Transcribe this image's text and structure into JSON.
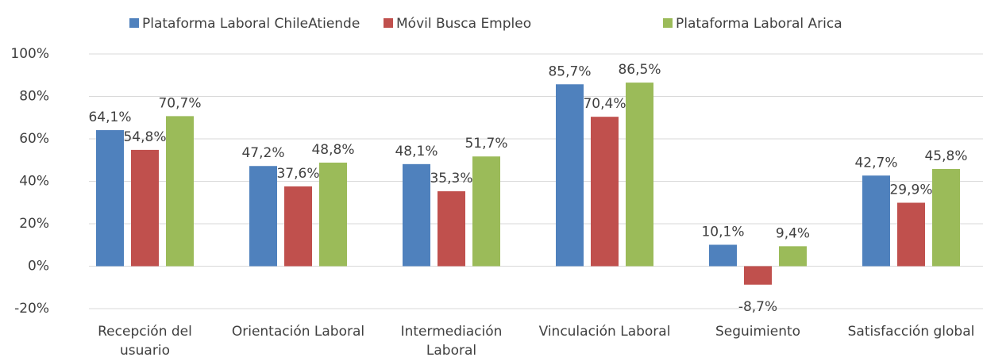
{
  "chart_data": {
    "type": "bar",
    "categories": [
      "Recepción del usuario",
      "Orientación Laboral",
      "Intermediación Laboral",
      "Vinculación Laboral",
      "Seguimiento",
      "Satisfacción global"
    ],
    "series": [
      {
        "name": "Plataforma Laboral ChileAtiende",
        "color": "#4f81bd",
        "values": [
          64.1,
          47.2,
          48.1,
          85.7,
          10.1,
          42.7
        ],
        "value_labels": [
          "64,1%",
          "47,2%",
          "48,1%",
          "85,7%",
          "10,1%",
          "42,7%"
        ]
      },
      {
        "name": "Móvil Busca Empleo",
        "color": "#c0504d",
        "values": [
          54.8,
          37.6,
          35.3,
          70.4,
          -8.7,
          29.9
        ],
        "value_labels": [
          "54,8%",
          "37,6%",
          "35,3%",
          "70,4%",
          "-8,7%",
          "29,9%"
        ]
      },
      {
        "name": "Plataforma Laboral Arica",
        "color": "#9bbb59",
        "values": [
          70.7,
          48.8,
          51.7,
          86.5,
          9.4,
          45.8
        ],
        "value_labels": [
          "70,7%",
          "48,8%",
          "51,7%",
          "86,5%",
          "9,4%",
          "45,8%"
        ]
      }
    ],
    "ylim": [
      -20,
      100
    ],
    "yticks": [
      {
        "value": -20,
        "label": "-20%"
      },
      {
        "value": 0,
        "label": "0%"
      },
      {
        "value": 20,
        "label": "20%"
      },
      {
        "value": 40,
        "label": "40%"
      },
      {
        "value": 60,
        "label": "60%"
      },
      {
        "value": 80,
        "label": "80%"
      },
      {
        "value": 100,
        "label": "100%"
      }
    ],
    "grid": true,
    "legend": "top"
  }
}
